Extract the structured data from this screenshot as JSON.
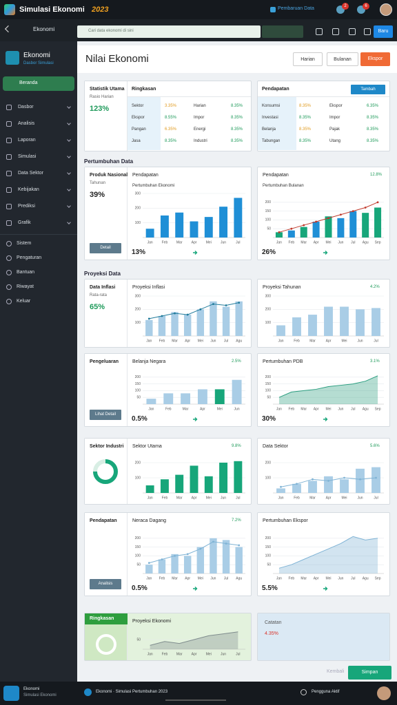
{
  "app": {
    "title": "Simulasi Ekonomi",
    "title_year": "2023",
    "status": "Pembaruan Data",
    "notif_a": 2,
    "notif_b": 6
  },
  "toolbar": {
    "breadcrumb": "Ekonomi",
    "search": "Cari data ekonomi di sini",
    "button": "Baru"
  },
  "sidebar": {
    "brand": "Ekonomi",
    "brand_sub": "Dasbor Simulasi",
    "active": "Beranda",
    "items": [
      "Dasbor",
      "Analisis",
      "Laporan",
      "Simulasi",
      "Data Sektor",
      "Kebijakan",
      "Prediksi",
      "Grafik"
    ],
    "items2": [
      "Sistem",
      "Pengaturan",
      "Bantuan",
      "Riwayat",
      "Keluar"
    ]
  },
  "page": {
    "title": "Nilai Ekonomi",
    "actions": [
      "Harian",
      "Bulanan",
      "Ekspor"
    ]
  },
  "sections": [
    "Pertumbuhan Data",
    "Proyeksi Data"
  ],
  "cards": [
    {
      "kind": "table",
      "side": {
        "title": "Statistik Utama",
        "sub": "Rasio Harian",
        "value": "123%"
      },
      "title": "Ringkasan",
      "rows": [
        [
          "Sektor",
          "3.35%",
          "Harian",
          "8.35%"
        ],
        [
          "Ekspor",
          "8.55%",
          "Impor",
          "8.35%"
        ],
        [
          "Pangan",
          "6.35%",
          "Energi",
          "8.35%"
        ],
        [
          "Jasa",
          "8.35%",
          "Industri",
          "8.35%"
        ]
      ]
    },
    {
      "kind": "table",
      "title": "Pendapatan",
      "button": "Tambah",
      "rows": [
        [
          "Konsumsi",
          "8.35%",
          "Ekspor",
          "6.35%"
        ],
        [
          "Investasi",
          "8.35%",
          "Impor",
          "8.35%"
        ],
        [
          "Belanja",
          "8.35%",
          "Pajak",
          "8.35%"
        ],
        [
          "Tabungan",
          "8.35%",
          "Utang",
          "8.35%"
        ]
      ]
    },
    {
      "kind": "chart",
      "side": {
        "title": "Produk Nasional",
        "sub": "Tahunan",
        "value": "39%",
        "button": "Detail"
      },
      "title": "Pendapatan",
      "chart_title": "Pertumbuhan Ekonomi",
      "foot": "13%",
      "chart": {
        "type": "bar",
        "categories": [
          "Jan",
          "Feb",
          "Mar",
          "Apr",
          "Mei",
          "Jun",
          "Jul"
        ],
        "values": [
          60,
          150,
          170,
          110,
          140,
          210,
          270
        ],
        "color": "#1f8fd6",
        "ylim": [
          0,
          300
        ],
        "yticks": [
          100,
          200,
          300
        ]
      }
    },
    {
      "kind": "chart",
      "title": "Pendapatan",
      "badge": "12.8%",
      "chart_title": "Pertumbuhan Bulanan",
      "foot": "26%",
      "chart": {
        "type": "combo",
        "categories": [
          "Jan",
          "Feb",
          "Mar",
          "Apr",
          "Mei",
          "Jun",
          "Jul",
          "Agu",
          "Sep"
        ],
        "values": [
          30,
          40,
          60,
          90,
          120,
          110,
          150,
          140,
          170
        ],
        "line": [
          30,
          50,
          70,
          90,
          110,
          130,
          150,
          170,
          200
        ],
        "color": "#1f8fd6",
        "colors": [
          "#17a67a",
          "#1f8fd6",
          "#17a67a",
          "#1f8fd6",
          "#17a67a",
          "#1f8fd6",
          "#1f8fd6",
          "#17a67a",
          "#17a67a"
        ],
        "line_color": "#c0392b",
        "ylim": [
          0,
          250
        ],
        "yticks": [
          50,
          100,
          150,
          200
        ]
      }
    },
    {
      "kind": "chart",
      "side": {
        "title": "Data Inflasi",
        "sub": "Rata-rata",
        "value": "65%"
      },
      "title": "Proyeksi Inflasi",
      "chart": {
        "type": "combo",
        "categories": [
          "Jan",
          "Feb",
          "Mar",
          "Apr",
          "Mei",
          "Jun",
          "Jul",
          "Agu"
        ],
        "values": [
          120,
          150,
          180,
          160,
          200,
          260,
          220,
          260
        ],
        "line": [
          130,
          150,
          170,
          160,
          200,
          240,
          230,
          250
        ],
        "color": "#a9cde6",
        "line_color": "#1f7a9a",
        "ylim": [
          0,
          300
        ],
        "yticks": [
          100,
          200,
          300
        ]
      }
    },
    {
      "kind": "chart",
      "title": "Proyeksi Tahunan",
      "badge": "4.2%",
      "chart": {
        "type": "bar",
        "categories": [
          "Jan",
          "Feb",
          "Mar",
          "Apr",
          "Mei",
          "Jun",
          "Jul"
        ],
        "values": [
          80,
          140,
          160,
          220,
          220,
          200,
          210
        ],
        "color": "#a9cde6",
        "ylim": [
          0,
          300
        ],
        "yticks": [
          100,
          200,
          300
        ]
      }
    },
    {
      "kind": "chart",
      "side": {
        "title": "Pengeluaran",
        "button": "Lihat Detail"
      },
      "title": "Belanja Negara",
      "badge": "2.5%",
      "foot": "0.5%",
      "chart": {
        "type": "bar",
        "categories": [
          "Jan",
          "Feb",
          "Mar",
          "Apr",
          "Mei",
          "Jun"
        ],
        "values": [
          40,
          80,
          80,
          110,
          110,
          180
        ],
        "color": "#a9cde6",
        "colors": [
          "#a9cde6",
          "#a9cde6",
          "#a9cde6",
          "#a9cde6",
          "#17a67a",
          "#a9cde6"
        ],
        "ylim": [
          0,
          250
        ],
        "yticks": [
          50,
          100,
          150,
          200
        ]
      }
    },
    {
      "kind": "chart",
      "title": "Pertumbuhan PDB",
      "badge": "3.1%",
      "foot": "30%",
      "chart": {
        "type": "area",
        "categories": [
          "Jan",
          "Feb",
          "Mar",
          "Apr",
          "Mei",
          "Jun",
          "Jul",
          "Agu",
          "Sep"
        ],
        "values": [
          50,
          90,
          100,
          110,
          130,
          140,
          150,
          170,
          210
        ],
        "color": "#2a9d7f",
        "ylim": [
          0,
          250
        ],
        "yticks": [
          50,
          100,
          150,
          200
        ]
      }
    },
    {
      "kind": "chart",
      "side": {
        "title": "Sektor Industri",
        "donut": 75
      },
      "title": "Sektor Utama",
      "badge": "9.8%",
      "chart": {
        "type": "bar",
        "categories": [
          "Jan",
          "Feb",
          "Mar",
          "Apr",
          "Mei",
          "Jun",
          "Jul"
        ],
        "values": [
          50,
          90,
          120,
          180,
          110,
          200,
          210
        ],
        "color": "#17a67a",
        "ylim": [
          0,
          250
        ],
        "yticks": [
          100,
          200
        ]
      }
    },
    {
      "kind": "chart",
      "title": "Data Sektor",
      "badge": "5.6%",
      "chart": {
        "type": "combo",
        "categories": [
          "Jan",
          "Feb",
          "Mar",
          "Apr",
          "Mei",
          "Jun",
          "Jul"
        ],
        "values": [
          30,
          60,
          80,
          110,
          90,
          160,
          170
        ],
        "line": [
          40,
          60,
          90,
          80,
          100,
          90,
          100
        ],
        "color": "#a9cde6",
        "line_color": "#7fb3d5",
        "ylim": [
          0,
          250
        ],
        "yticks": [
          100,
          200
        ]
      }
    },
    {
      "kind": "chart",
      "side": {
        "title": "Pendapatan",
        "button": "Analisis"
      },
      "title": "Neraca Dagang",
      "badge": "7.2%",
      "foot": "0.5%",
      "chart": {
        "type": "combo",
        "categories": [
          "Jan",
          "Feb",
          "Mar",
          "Apr",
          "Mei",
          "Jun",
          "Jul",
          "Agu"
        ],
        "values": [
          50,
          80,
          110,
          100,
          150,
          200,
          190,
          150
        ],
        "line": [
          60,
          80,
          100,
          110,
          140,
          180,
          170,
          160
        ],
        "color": "#a9cde6",
        "line_color": "#7fb3d5",
        "ylim": [
          0,
          250
        ],
        "yticks": [
          50,
          100,
          150,
          200
        ]
      }
    },
    {
      "kind": "chart",
      "title": "Pertumbuhan Ekspor",
      "foot": "5.5%",
      "chart": {
        "type": "area",
        "categories": [
          "Jan",
          "Feb",
          "Mar",
          "Apr",
          "Mei",
          "Jun",
          "Jul",
          "Agu",
          "Sep"
        ],
        "values": [
          30,
          50,
          80,
          110,
          140,
          170,
          210,
          190,
          200
        ],
        "color": "#7fb3d5",
        "ylim": [
          0,
          250
        ],
        "yticks": [
          50,
          100,
          150,
          200
        ]
      }
    },
    {
      "kind": "chart",
      "side": {
        "title": "Ringkasan"
      },
      "title": "Proyeksi Ekonomi",
      "chart": {
        "type": "area",
        "categories": [
          "Jan",
          "Feb",
          "Mar",
          "Apr",
          "Mei",
          "Jun",
          "Jul"
        ],
        "values": [
          20,
          40,
          30,
          50,
          70,
          80,
          90
        ],
        "color": "#7f8c8d",
        "ylim": [
          0,
          100
        ],
        "yticks": [
          50
        ]
      }
    },
    {
      "kind": "note",
      "title": "Catatan",
      "value": "4.35%"
    }
  ],
  "footer_actions": {
    "back": "Kembali",
    "save": "Simpan"
  },
  "taskbar": {
    "app": "Ekonomi",
    "app_sub": "Simulasi Ekonomi",
    "now_playing": "Ekonomi · Simulasi Pertumbuhan 2023",
    "user": "Pengguna Aktif"
  }
}
